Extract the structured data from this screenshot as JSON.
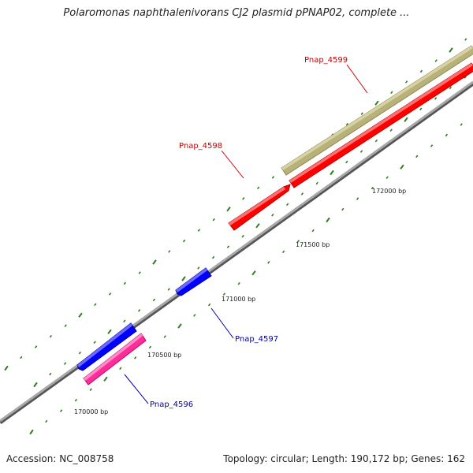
{
  "title": "Polaromonas naphthalenivorans CJ2 plasmid pPNAP02, complete ...",
  "accession": "Accession: NC_008758",
  "summary": "Topology: circular; Length: 190,172 bp; Genes: 162",
  "colors": {
    "backbone": "#8c8c8c",
    "tick": "#2e7d1e",
    "gene_red": "#ff0000",
    "gene_blue": "#0000ff",
    "gene_pink": "#ff2d9a",
    "gene_khaki": "#b8b27a"
  },
  "ticks": [
    {
      "label": "170000 bp"
    },
    {
      "label": "170500 bp"
    },
    {
      "label": "171000 bp"
    },
    {
      "label": "171500 bp"
    },
    {
      "label": "172000 bp"
    }
  ],
  "genes": [
    {
      "name": "Pnap_4596",
      "color": "#0000ff",
      "labelColor": "#0000aa"
    },
    {
      "name": "Pnap_4597",
      "color": "#0000ff",
      "labelColor": "#0000aa"
    },
    {
      "name": "Pnap_4598",
      "color": "#ff0000",
      "labelColor": "#cc0000"
    },
    {
      "name": "Pnap_4599",
      "color": "#ff0000",
      "labelColor": "#cc0000"
    }
  ]
}
